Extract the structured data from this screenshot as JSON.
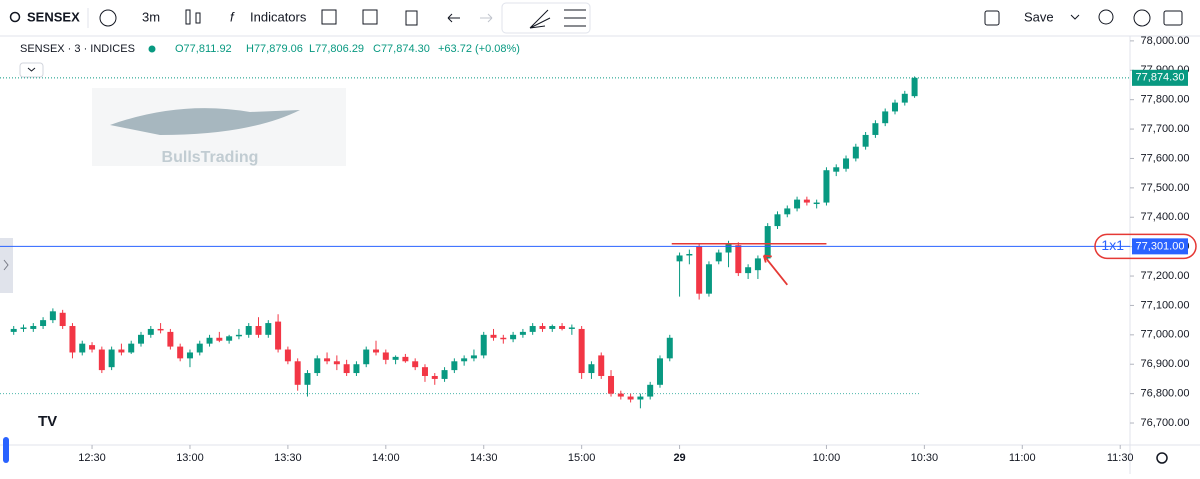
{
  "toolbar": {
    "symbol": "SENSEX",
    "interval": "3m",
    "indicators": "Indicators",
    "save": "Save"
  },
  "legend": {
    "symbol": "SENSEX · 3 · INDICES",
    "open": "O77,811.92",
    "high": "H77,879.06",
    "low": "L77,806.29",
    "close": "C77,874.30",
    "change": "+63.72 (+0.08%)"
  },
  "watermark": "BullsTrading",
  "chart_data": {
    "type": "candlestick",
    "up_color": "#089981",
    "down_color": "#f23645",
    "open": [
      77010,
      77020,
      77020,
      77030,
      77050,
      77075,
      77030,
      76940,
      76965,
      76950,
      76890,
      76950,
      76940,
      76970,
      77000,
      77020,
      77010,
      76960,
      76920,
      76940,
      76970,
      76990,
      76980,
      76995,
      77000,
      77030,
      77000,
      77045,
      76950,
      76910,
      76830,
      76870,
      76920,
      76910,
      76900,
      76870,
      76900,
      76950,
      76940,
      76915,
      76925,
      76910,
      76890,
      76860,
      76850,
      76880,
      76910,
      76920,
      76930,
      77000,
      76990,
      76985,
      77000,
      77010,
      77030,
      77020,
      77030,
      77020,
      77020,
      76870,
      76930,
      76860,
      76800,
      76790,
      76780,
      76790,
      76830,
      76920,
      77250,
      77270,
      77300,
      77140,
      77250,
      77280,
      77305,
      77210,
      77220,
      77260,
      77370,
      77410,
      77430,
      77460,
      77445,
      77450,
      77555,
      77565,
      77600,
      77640,
      77680,
      77720,
      77760,
      77790,
      77811.92
    ],
    "high": [
      77030,
      77035,
      77040,
      77060,
      77090,
      77085,
      77040,
      76980,
      76975,
      76960,
      76960,
      76970,
      76980,
      77010,
      77030,
      77040,
      77020,
      76970,
      76950,
      76980,
      77000,
      77010,
      77000,
      77020,
      77040,
      77060,
      77050,
      77070,
      76960,
      76920,
      76880,
      76930,
      76940,
      76930,
      76915,
      76910,
      76960,
      76980,
      76950,
      76930,
      76935,
      76920,
      76900,
      76870,
      76890,
      76920,
      76930,
      76950,
      77010,
      77020,
      77000,
      77010,
      77020,
      77040,
      77040,
      77035,
      77040,
      77035,
      77030,
      76910,
      76940,
      76880,
      76810,
      76800,
      76800,
      76840,
      76930,
      77000,
      77280,
      77290,
      77310,
      77250,
      77290,
      77320,
      77315,
      77240,
      77270,
      77380,
      77420,
      77440,
      77470,
      77470,
      77460,
      77570,
      77580,
      77610,
      77650,
      77690,
      77730,
      77770,
      77800,
      77830,
      77879.06
    ],
    "low": [
      77000,
      77010,
      77010,
      77020,
      77040,
      77020,
      76920,
      76930,
      76940,
      76870,
      76880,
      76930,
      76935,
      76960,
      76990,
      77005,
      76950,
      76910,
      76890,
      76930,
      76960,
      76975,
      76970,
      76985,
      76990,
      76990,
      76990,
      76940,
      76900,
      76810,
      76790,
      76860,
      76900,
      76880,
      76860,
      76860,
      76890,
      76930,
      76900,
      76900,
      76905,
      76880,
      76840,
      76830,
      76840,
      76870,
      76895,
      76910,
      76920,
      76980,
      76970,
      76975,
      76990,
      77000,
      77010,
      77010,
      77015,
      77000,
      76850,
      76850,
      76850,
      76790,
      76780,
      76770,
      76750,
      76780,
      76820,
      76910,
      77130,
      77240,
      77120,
      77130,
      77240,
      77230,
      77200,
      77190,
      77190,
      77250,
      77360,
      77400,
      77420,
      77440,
      77430,
      77440,
      77540,
      77555,
      77590,
      77630,
      77670,
      77710,
      77750,
      77780,
      77806.29
    ],
    "close": [
      77020,
      77025,
      77030,
      77050,
      77080,
      77030,
      76940,
      76970,
      76950,
      76880,
      76950,
      76940,
      76970,
      77000,
      77020,
      77015,
      76960,
      76920,
      76940,
      76970,
      76990,
      76980,
      76995,
      77000,
      77030,
      77000,
      77040,
      76950,
      76910,
      76830,
      76870,
      76920,
      76910,
      76900,
      76870,
      76900,
      76950,
      76940,
      76915,
      76925,
      76910,
      76890,
      76860,
      76850,
      76880,
      76910,
      76920,
      76930,
      77000,
      76990,
      76985,
      77000,
      77010,
      77030,
      77020,
      77030,
      77020,
      77025,
      76870,
      76900,
      76860,
      76800,
      76790,
      76780,
      76790,
      76830,
      76920,
      76990,
      77270,
      77275,
      77140,
      77240,
      77280,
      77310,
      77210,
      77230,
      77260,
      77370,
      77410,
      77430,
      77460,
      77450,
      77450,
      77560,
      77570,
      77600,
      77640,
      77680,
      77720,
      77760,
      77790,
      77820,
      77874.3
    ],
    "xlim": [
      -1.4,
      114
    ],
    "xticks": [
      {
        "value": 8,
        "label": "12:30"
      },
      {
        "value": 18,
        "label": "13:00"
      },
      {
        "value": 28,
        "label": "13:30"
      },
      {
        "value": 38,
        "label": "14:00"
      },
      {
        "value": 48,
        "label": "14:30"
      },
      {
        "value": 58,
        "label": "15:00"
      },
      {
        "value": 68,
        "label": "29"
      },
      {
        "value": 83,
        "label": "10:00"
      },
      {
        "value": 93,
        "label": "10:30"
      },
      {
        "value": 103,
        "label": "11:00"
      },
      {
        "value": 113,
        "label": "11:30"
      }
    ],
    "ylim": [
      76581,
      78037
    ],
    "yticks": [
      {
        "value": 76700,
        "label": "76,700.00"
      },
      {
        "value": 76800,
        "label": "76,800.00"
      },
      {
        "value": 76900,
        "label": "76,900.00"
      },
      {
        "value": 77000,
        "label": "77,000.00"
      },
      {
        "value": 77100,
        "label": "77,100.00"
      },
      {
        "value": 77200,
        "label": "77,200.00"
      },
      {
        "value": 77300,
        "label": "77,300.00"
      },
      {
        "value": 77400,
        "label": "77,400.00"
      },
      {
        "value": 77500,
        "label": "77,500.00"
      },
      {
        "value": 77600,
        "label": "77,600.00"
      },
      {
        "value": 77700,
        "label": "77,700.00"
      },
      {
        "value": 77800,
        "label": "77,800.00"
      },
      {
        "value": 77900,
        "label": "77,900.00"
      },
      {
        "value": 78000,
        "label": "78,000.00"
      }
    ],
    "horizontal_line": {
      "value": 77301,
      "label": "77,301.00",
      "tag": "1x1",
      "color": "#2962ff"
    },
    "last_price_label": "77,874.30",
    "reference_line": {
      "value": 76800,
      "color": "#4db6ac"
    },
    "trend_line": {
      "value": 77310,
      "x": [
        67.2,
        83
      ],
      "color": "#e53935"
    }
  }
}
